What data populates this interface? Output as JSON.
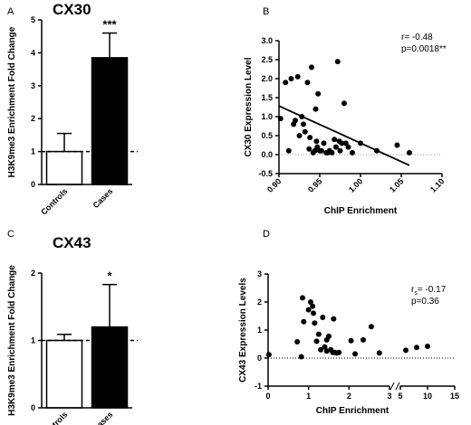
{
  "chart_data": [
    {
      "panel": "A",
      "type": "bar",
      "title": "CX30",
      "ylabel": "H3K9me3 Enrichment Fold Change",
      "categories": [
        "Controls",
        "Cases"
      ],
      "values": [
        1.0,
        3.85
      ],
      "errors": [
        0.55,
        0.75
      ],
      "fills": [
        "#ffffff",
        "#000000"
      ],
      "ylim": [
        0,
        5
      ],
      "yticks": [
        "0",
        "1",
        "2",
        "3",
        "4",
        "5"
      ],
      "reference_line": 1,
      "annotation": "***",
      "annotation_category": "Cases"
    },
    {
      "panel": "B",
      "type": "scatter",
      "title": "",
      "xlabel": "ChIP Enrichment",
      "ylabel": "CX30 Expression Level",
      "xlim": [
        0.9,
        1.1
      ],
      "ylim": [
        -0.5,
        3
      ],
      "xticks": [
        "0.90",
        "0.95",
        "1.00",
        "1.05",
        "1.10"
      ],
      "yticks": [
        "-0.5",
        "0.0",
        "0.5",
        "1.0",
        "1.5",
        "2.0",
        "2.5",
        "3.0"
      ],
      "reference_line": 0,
      "regression": [
        [
          0.9,
          1.28
        ],
        [
          1.06,
          -0.28
        ]
      ],
      "stats": [
        "r= -0.48",
        "p=0.0018**"
      ],
      "x": [
        0.902,
        0.908,
        0.912,
        0.915,
        0.918,
        0.92,
        0.923,
        0.925,
        0.928,
        0.93,
        0.932,
        0.935,
        0.937,
        0.938,
        0.94,
        0.942,
        0.944,
        0.945,
        0.946,
        0.947,
        0.948,
        0.95,
        0.952,
        0.955,
        0.958,
        0.96,
        0.962,
        0.965,
        0.968,
        0.97,
        0.972,
        0.974,
        0.975,
        0.977,
        0.98,
        0.982,
        0.985,
        0.99,
        1.0,
        1.02,
        1.045,
        1.06
      ],
      "y": [
        0.95,
        1.9,
        0.1,
        2.0,
        0.8,
        0.9,
        2.05,
        0.5,
        1.0,
        0.8,
        0.6,
        1.9,
        0.15,
        0.45,
        2.3,
        0.05,
        0.1,
        1.2,
        0.35,
        0.2,
        1.6,
        0.1,
        0.1,
        0.3,
        0.05,
        0.05,
        0.1,
        0.05,
        0.4,
        0.2,
        2.45,
        0.35,
        0.1,
        0.3,
        1.35,
        0.3,
        0.2,
        0.05,
        0.3,
        0.1,
        0.25,
        0.05
      ]
    },
    {
      "panel": "C",
      "type": "bar",
      "title": "CX43",
      "ylabel": "H3K9me3 Enrichment Fold Change",
      "categories": [
        "Controls",
        "Cases"
      ],
      "values": [
        1.0,
        1.2
      ],
      "errors": [
        0.09,
        0.63
      ],
      "fills": [
        "#ffffff",
        "#000000"
      ],
      "ylim": [
        0,
        2
      ],
      "yticks": [
        "0",
        "1",
        "2"
      ],
      "reference_line": 1,
      "annotation": "*",
      "annotation_category": "Cases"
    },
    {
      "panel": "D",
      "type": "scatter",
      "title": "",
      "xlabel": "ChIP Enrichment",
      "ylabel": "CX43 Expression Levels",
      "ylim": [
        -1,
        3
      ],
      "yticks": [
        "-1",
        "0",
        "1",
        "2",
        "3"
      ],
      "xticks": [
        "0",
        "1",
        "2",
        "3",
        "5",
        "10",
        "15"
      ],
      "x_axis_break": "broken axis: 0–3 then 5–15",
      "reference_line": 0,
      "stats_r_prefix": "r",
      "stats_r_subscript": "s",
      "stats_r_value": "= -0.17",
      "stats_p": "p=0.36",
      "x": [
        0.02,
        0.72,
        0.82,
        0.85,
        0.88,
        1.0,
        1.05,
        1.1,
        1.12,
        1.15,
        1.2,
        1.25,
        1.3,
        1.35,
        1.4,
        1.45,
        1.45,
        1.5,
        1.55,
        1.6,
        1.62,
        1.65,
        1.7,
        1.75,
        2.05,
        2.15,
        2.35,
        2.55,
        2.75,
        6.0,
        8.0,
        10.0
      ],
      "y": [
        0.12,
        0.58,
        0.05,
        2.15,
        1.3,
        1.72,
        2.0,
        1.85,
        1.6,
        1.25,
        0.6,
        0.85,
        0.3,
        1.45,
        0.4,
        0.25,
        0.65,
        0.78,
        0.3,
        0.2,
        1.4,
        0.2,
        0.18,
        0.2,
        0.62,
        0.15,
        0.65,
        1.12,
        0.18,
        0.28,
        0.38,
        0.42
      ]
    }
  ]
}
